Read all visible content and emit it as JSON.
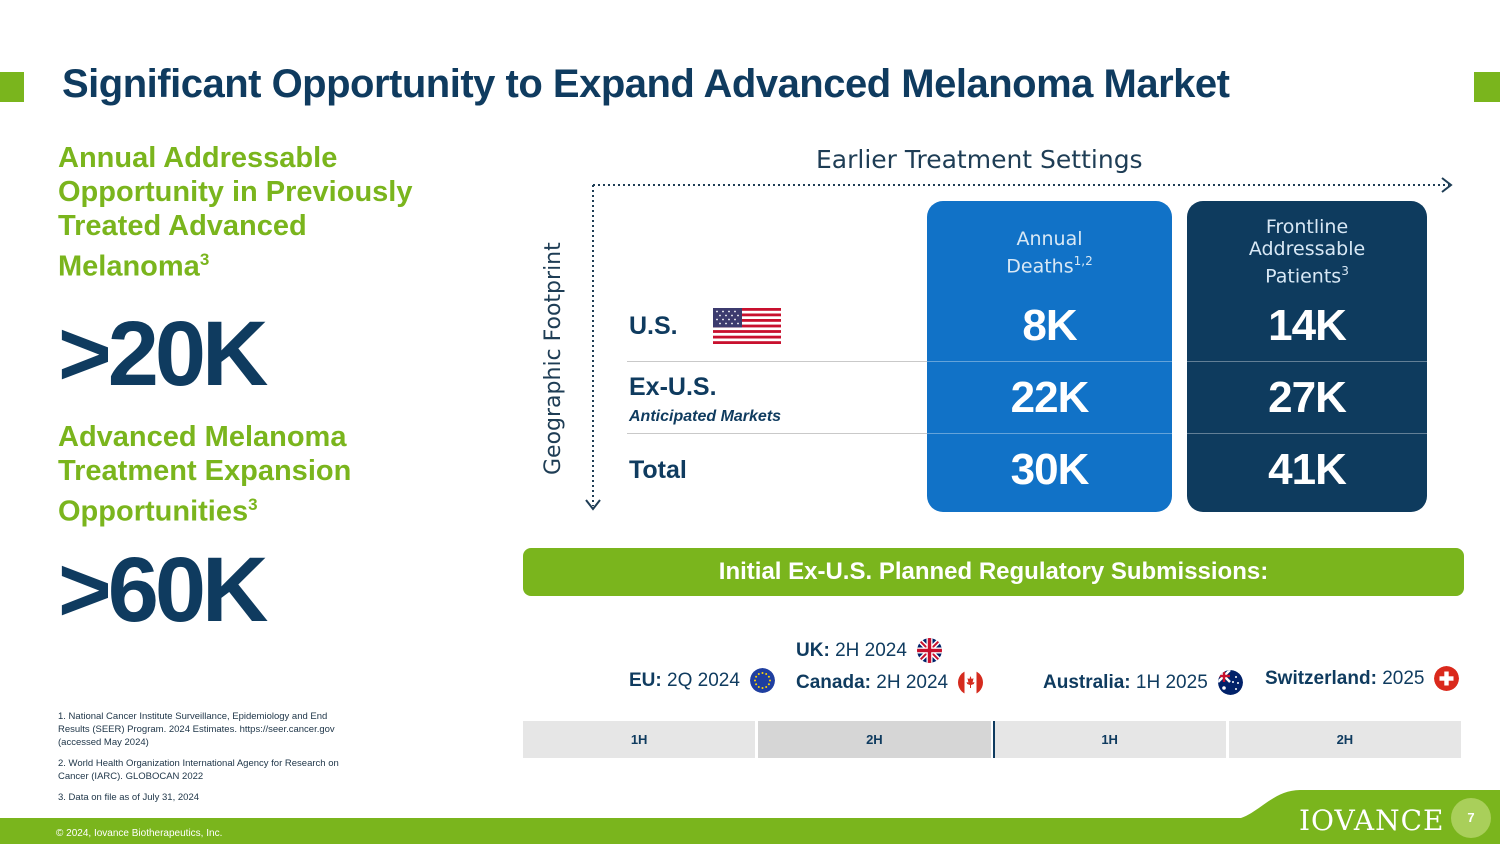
{
  "title": "Significant Opportunity to Expand Advanced Melanoma Market",
  "left": {
    "heading1": "Annual Addressable Opportunity in Previously Treated Advanced Melanoma",
    "heading1_sup": "3",
    "value1": ">20K",
    "heading2": "Advanced Melanoma Treatment Expansion Opportunities",
    "heading2_sup": "3",
    "value2": ">60K"
  },
  "footnotes": [
    "1. National Cancer Institute Surveillance, Epidemiology and End Results (SEER) Program. 2024 Estimates. https://seer.cancer.gov (accessed May 2024)",
    "2. World Health Organization International Agency for Research on Cancer (IARC). GLOBOCAN 2022",
    "3. Data on file as of July 31, 2024"
  ],
  "axes": {
    "top": "Earlier Treatment Settings",
    "side": "Geographic Footprint"
  },
  "table": {
    "col_a": {
      "label": "Annual Deaths",
      "sup": "1,2",
      "values": [
        "8K",
        "22K",
        "30K"
      ]
    },
    "col_b": {
      "label_line1": "Frontline",
      "label_line2": "Addressable",
      "label_line3": "Patients",
      "sup": "3",
      "values": [
        "14K",
        "27K",
        "41K"
      ]
    },
    "rows": [
      {
        "label": "U.S."
      },
      {
        "label": "Ex-U.S.",
        "sub": "Anticipated Markets"
      },
      {
        "label": "Total"
      }
    ]
  },
  "banner": "Initial Ex-U.S. Planned Regulatory Submissions:",
  "submissions": {
    "eu": {
      "label": "EU:",
      "date": "2Q 2024",
      "flag": "eu-flag-icon"
    },
    "uk": {
      "label": "UK:",
      "date": "2H 2024",
      "flag": "uk-flag-icon"
    },
    "canada": {
      "label": "Canada:",
      "date": "2H 2024",
      "flag": "canada-flag-icon"
    },
    "australia": {
      "label": "Australia:",
      "date": "1H 2025",
      "flag": "australia-flag-icon"
    },
    "switzerland": {
      "label": "Switzerland:",
      "date": "2025",
      "flag": "switzerland-flag-icon"
    }
  },
  "timeline": [
    "1H",
    "2H",
    "1H",
    "2H"
  ],
  "footer": {
    "copyright": "© 2024, Iovance Biotherapeutics, Inc.",
    "logo": "IOVANCE",
    "page": "7"
  },
  "colors": {
    "green": "#7ab51d",
    "navy": "#0f3b5f",
    "blue": "#1172c7"
  }
}
